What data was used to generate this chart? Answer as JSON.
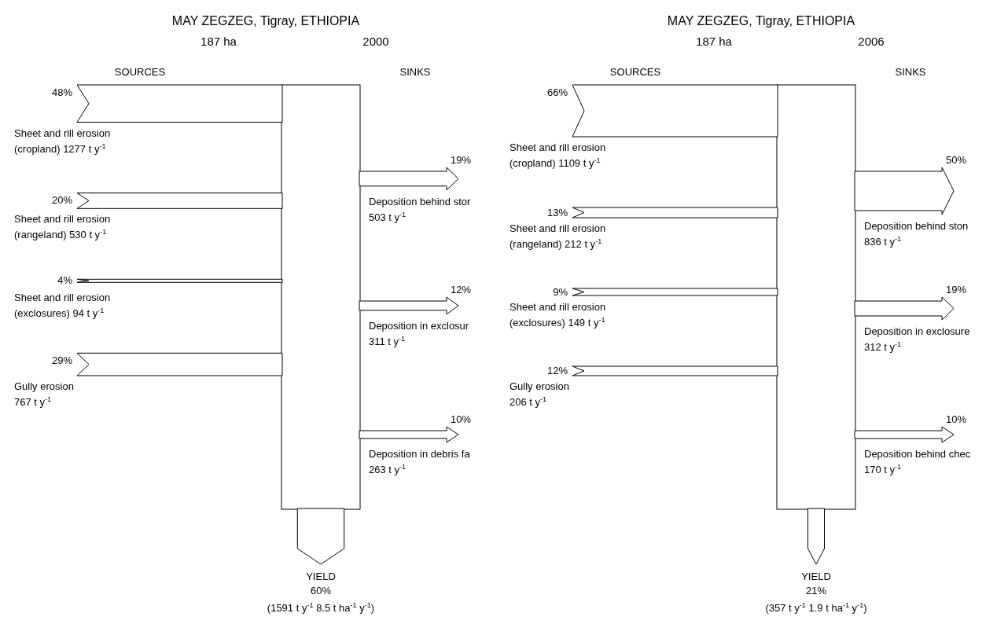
{
  "chart_data": [
    {
      "type": "other",
      "title": "MAY ZEGZEG, Tigray, ETHIOPIA",
      "annotations": [
        "187 ha",
        "2000"
      ],
      "categories": [
        "Sheet and rill erosion\n(cropland) 1277 t y$^{-1}$",
        "Sheet and rill erosion\n(rangeland)  530 t y$^{-1}$",
        "Sheet and rill erosion\n(exclosures) 94 t y$^{-1}$",
        "Gully erosion\n767 t y$^{-1}$",
        "Deposition behind stor\n503 t y$^{-1}$",
        "Deposition in exclosur\n311 t y$^{-1}$",
        "Deposition in debris fa\n263 t y$^{-1}$",
        "(1591 t y$^{-1}$    8.5 t ha$^{-1}$ y$^{-1}$)"
      ],
      "series": [
        {
          "name": "SOURCES",
          "color": "#000000",
          "values": [
            48,
            20,
            4,
            29,
            null,
            null,
            null,
            null
          ],
          "value_labels": [
            "48%",
            "20%",
            "4%",
            "29%",
            null,
            null,
            null,
            null
          ]
        },
        {
          "name": "SINKS",
          "color": "#000000",
          "values": [
            null,
            null,
            null,
            null,
            19,
            12,
            10,
            null
          ],
          "value_labels": [
            null,
            null,
            null,
            null,
            "19%",
            "12%",
            "10%",
            null
          ]
        },
        {
          "name": "YIELD",
          "color": "#000000",
          "values": [
            null,
            null,
            null,
            null,
            null,
            null,
            null,
            60
          ],
          "value_labels": [
            null,
            null,
            null,
            null,
            null,
            null,
            null,
            "60%"
          ]
        }
      ]
    },
    {
      "type": "other",
      "title": "MAY ZEGZEG, Tigray, ETHIOPIA",
      "annotations": [
        "187 ha",
        "2006"
      ],
      "categories": [
        "Sheet and rill erosion\n(cropland) 1109 t y$^{-1}$",
        "Sheet and rill erosion\n(rangeland)  212 t y$^{-1}$",
        "Sheet and rill erosion\n(exclosures) 149 t y$^{-1}$",
        "Gully erosion\n206 t y$^{-1}$",
        "Deposition behind ston\n836 t y$^{-1}$",
        "Deposition in exclosure\n312 t y$^{-1}$",
        "Deposition behind chec\n170 t y$^{-1}$",
        "(357 t y$^{-1}$    1.9 t ha$^{-1}$ y$^{-1}$)"
      ],
      "series": [
        {
          "name": "SOURCES",
          "color": "#000000",
          "values": [
            66,
            13,
            9,
            12,
            null,
            null,
            null,
            null
          ],
          "value_labels": [
            "66%",
            "13%",
            "9%",
            "12%",
            null,
            null,
            null,
            null
          ]
        },
        {
          "name": "SINKS",
          "color": "#000000",
          "values": [
            null,
            null,
            null,
            null,
            50,
            19,
            10,
            null
          ],
          "value_labels": [
            null,
            null,
            null,
            null,
            "50%",
            "19%",
            "10%",
            null
          ]
        },
        {
          "name": "YIELD",
          "color": "#000000",
          "values": [
            null,
            null,
            null,
            null,
            null,
            null,
            null,
            21
          ],
          "value_labels": [
            null,
            null,
            null,
            null,
            null,
            null,
            null,
            "21%"
          ]
        }
      ]
    }
  ]
}
